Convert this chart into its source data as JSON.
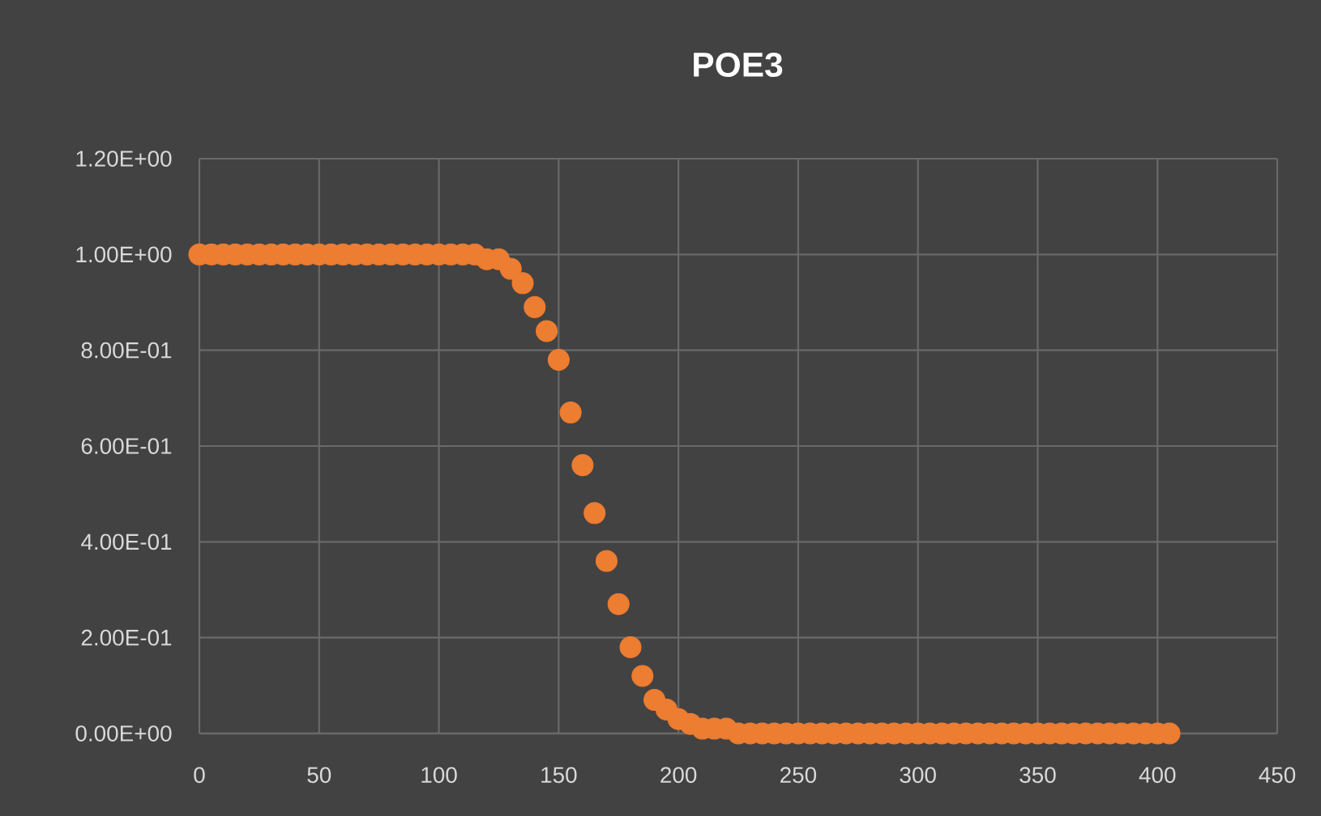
{
  "chart_data": {
    "type": "scatter",
    "title": "POE3",
    "color": "#ed7d31",
    "grid": true,
    "x": [
      0,
      5,
      10,
      15,
      20,
      25,
      30,
      35,
      40,
      45,
      50,
      55,
      60,
      65,
      70,
      75,
      80,
      85,
      90,
      95,
      100,
      105,
      110,
      115,
      120,
      125,
      130,
      135,
      140,
      145,
      150,
      155,
      160,
      165,
      170,
      175,
      180,
      185,
      190,
      195,
      200,
      205,
      210,
      215,
      220,
      225,
      230,
      235,
      240,
      245,
      250,
      255,
      260,
      265,
      270,
      275,
      280,
      285,
      290,
      295,
      300,
      305,
      310,
      315,
      320,
      325,
      330,
      335,
      340,
      345,
      350,
      355,
      360,
      365,
      370,
      375,
      380,
      385,
      390,
      395,
      400,
      405
    ],
    "values": [
      1,
      1,
      1,
      1,
      1,
      1,
      1,
      1,
      1,
      1,
      1,
      1,
      1,
      1,
      1,
      1,
      1,
      1,
      1,
      1,
      1,
      1,
      1,
      1,
      0.99,
      0.99,
      0.97,
      0.94,
      0.89,
      0.84,
      0.78,
      0.67,
      0.56,
      0.46,
      0.36,
      0.27,
      0.18,
      0.12,
      0.07,
      0.05,
      0.03,
      0.02,
      0.01,
      0.01,
      0.01,
      0,
      0,
      0,
      0,
      0,
      0,
      0,
      0,
      0,
      0,
      0,
      0,
      0,
      0,
      0,
      0,
      0,
      0,
      0,
      0,
      0,
      0,
      0,
      0,
      0,
      0,
      0,
      0,
      0,
      0,
      0,
      0,
      0,
      0,
      0,
      0,
      0
    ],
    "xlim": [
      0,
      450
    ],
    "xticks": [
      0,
      50,
      100,
      150,
      200,
      250,
      300,
      350,
      400,
      450
    ],
    "ylim": [
      0,
      1.2
    ],
    "yticks": [
      {
        "value": 0,
        "label": "0.00E+00"
      },
      {
        "value": 0.2,
        "label": "2.00E-01"
      },
      {
        "value": 0.4,
        "label": "4.00E-01"
      },
      {
        "value": 0.6,
        "label": "6.00E-01"
      },
      {
        "value": 0.8,
        "label": "8.00E-01"
      },
      {
        "value": 1,
        "label": "1.00E+00"
      },
      {
        "value": 1.2,
        "label": "1.20E+00"
      }
    ]
  }
}
